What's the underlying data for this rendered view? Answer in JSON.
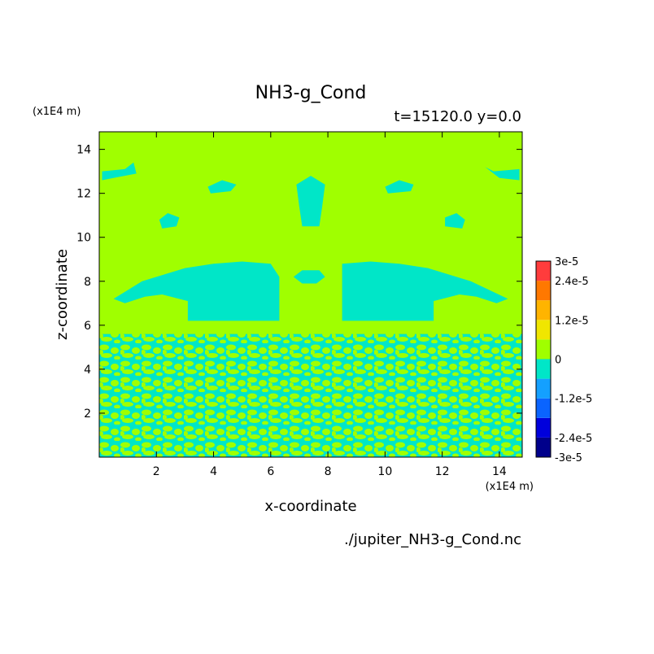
{
  "chart_data": {
    "type": "heatmap",
    "title": "NH3-g_Cond",
    "subtitle": "t=15120.0 y=0.0",
    "xlabel": "x-coordinate",
    "ylabel": "z-coordinate",
    "x_unit": "(x1E4 m)",
    "y_unit": "(x1E4 m)",
    "footer": "./jupiter_NH3-g_Cond.nc",
    "xlim": [
      0,
      14.8
    ],
    "ylim": [
      0,
      14.8
    ],
    "x_ticks": [
      2,
      4,
      6,
      8,
      10,
      12,
      14
    ],
    "y_ticks": [
      2,
      4,
      6,
      8,
      10,
      12,
      14
    ],
    "x_tick_labels": [
      "2",
      "4",
      "6",
      "8",
      "10",
      "12",
      "14"
    ],
    "y_tick_labels": [
      "2",
      "4",
      "6",
      "8",
      "10",
      "12",
      "14"
    ],
    "colorbar": {
      "levels": [
        -3e-05,
        -2.4e-05,
        -1.8e-05,
        -1.2e-05,
        -6e-06,
        0,
        6e-06,
        1.2e-05,
        1.8e-05,
        2.4e-05,
        3e-05
      ],
      "colors": [
        "#00008b",
        "#0000dc",
        "#0a64ff",
        "#14a0ff",
        "#00e6c8",
        "#a0ff00",
        "#f0e600",
        "#ffb400",
        "#ff7800",
        "#ff3c3c"
      ],
      "tick_values": [
        3e-05,
        2.4e-05,
        1.2e-05,
        0,
        -1.2e-05,
        -2.4e-05,
        -3e-05
      ],
      "tick_labels": [
        "3e-5",
        "2.4e-5",
        "1.2e-5",
        "0",
        "-1.2e-5",
        "-2.4e-5",
        "-3e-5"
      ]
    },
    "field": {
      "background_value": "0 to 6e-6",
      "feature_value": "-6e-6 to 0",
      "turbulent_layer_z_top": 5.6,
      "regions": [
        {
          "name": "left-lobe",
          "points": [
            [
              0.5,
              7.2
            ],
            [
              1.5,
              8.0
            ],
            [
              3.0,
              8.6
            ],
            [
              4.0,
              8.8
            ],
            [
              5.0,
              8.9
            ],
            [
              6.0,
              8.8
            ],
            [
              6.3,
              8.2
            ],
            [
              6.3,
              6.2
            ],
            [
              3.1,
              6.2
            ],
            [
              3.1,
              7.1
            ],
            [
              2.2,
              7.4
            ],
            [
              1.6,
              7.3
            ],
            [
              0.9,
              7.0
            ]
          ]
        },
        {
          "name": "right-lobe",
          "points": [
            [
              8.5,
              8.8
            ],
            [
              9.5,
              8.9
            ],
            [
              10.5,
              8.8
            ],
            [
              11.5,
              8.6
            ],
            [
              13.0,
              8.0
            ],
            [
              14.3,
              7.2
            ],
            [
              13.9,
              7.0
            ],
            [
              13.2,
              7.3
            ],
            [
              12.6,
              7.4
            ],
            [
              11.7,
              7.1
            ],
            [
              11.7,
              6.2
            ],
            [
              8.5,
              6.2
            ],
            [
              8.5,
              8.2
            ]
          ]
        },
        {
          "name": "center-blob",
          "points": [
            [
              7.1,
              7.9
            ],
            [
              7.6,
              7.9
            ],
            [
              7.9,
              8.2
            ],
            [
              7.7,
              8.5
            ],
            [
              7.1,
              8.5
            ],
            [
              6.8,
              8.2
            ]
          ]
        },
        {
          "name": "center-column",
          "points": [
            [
              7.1,
              10.5
            ],
            [
              7.7,
              10.5
            ],
            [
              7.8,
              11.4
            ],
            [
              7.9,
              12.4
            ],
            [
              7.4,
              12.8
            ],
            [
              6.9,
              12.4
            ],
            [
              7.0,
              11.4
            ]
          ]
        },
        {
          "name": "left-small",
          "points": [
            [
              2.2,
              10.4
            ],
            [
              2.7,
              10.5
            ],
            [
              2.8,
              10.9
            ],
            [
              2.4,
              11.1
            ],
            [
              2.1,
              10.8
            ]
          ]
        },
        {
          "name": "right-small",
          "points": [
            [
              12.1,
              10.5
            ],
            [
              12.7,
              10.4
            ],
            [
              12.8,
              10.8
            ],
            [
              12.5,
              11.1
            ],
            [
              12.1,
              10.9
            ]
          ]
        },
        {
          "name": "top-left-streak",
          "points": [
            [
              0.1,
              13.0
            ],
            [
              0.9,
              13.1
            ],
            [
              1.2,
              13.4
            ],
            [
              1.3,
              12.9
            ],
            [
              0.5,
              12.7
            ],
            [
              0.1,
              12.6
            ]
          ]
        },
        {
          "name": "top-right-streak",
          "points": [
            [
              13.8,
              13.0
            ],
            [
              14.7,
              13.1
            ],
            [
              14.7,
              12.6
            ],
            [
              14.0,
              12.7
            ],
            [
              13.5,
              13.2
            ]
          ]
        },
        {
          "name": "upper-left-patch",
          "points": [
            [
              3.9,
              12.0
            ],
            [
              4.6,
              12.1
            ],
            [
              4.8,
              12.4
            ],
            [
              4.3,
              12.6
            ],
            [
              3.8,
              12.3
            ]
          ]
        },
        {
          "name": "upper-right-patch",
          "points": [
            [
              10.1,
              12.0
            ],
            [
              10.9,
              12.1
            ],
            [
              11.0,
              12.4
            ],
            [
              10.5,
              12.6
            ],
            [
              10.0,
              12.3
            ]
          ]
        }
      ]
    }
  }
}
